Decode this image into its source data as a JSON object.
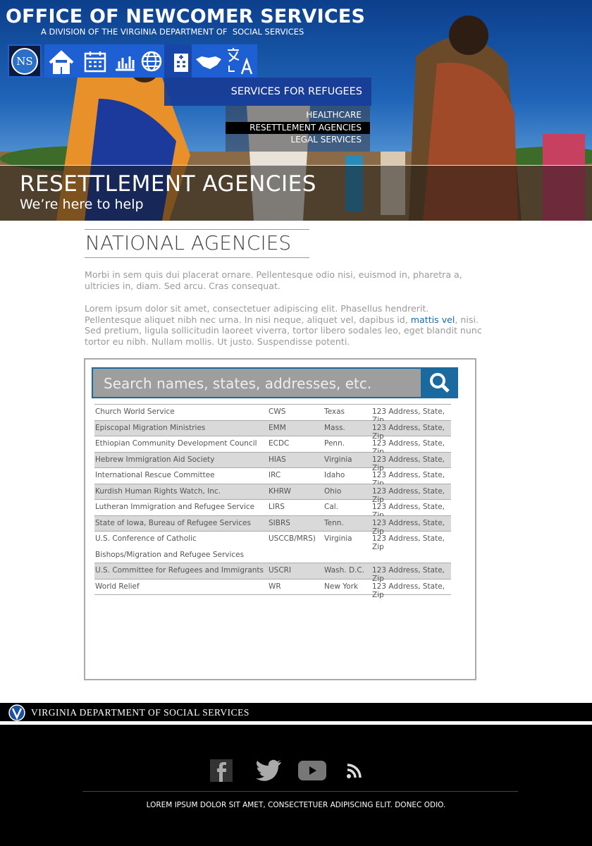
{
  "header": {
    "title": "OFFICE OF NEWCOMER SERVICES",
    "subtitle": "A DIVISION OF THE VIRGINIA DEPARTMENT OF  SOCIAL SERVICES",
    "logo": "NS"
  },
  "menu": {
    "title": "SERVICES FOR REFUGEES",
    "items": [
      "HEALTHCARE",
      "RESETTLEMENT AGENCIES",
      "LEGAL SERVICES"
    ]
  },
  "hero": {
    "title": "RESETTLEMENT AGENCIES",
    "subtitle": "We’re here to help"
  },
  "section": {
    "heading": "NATIONAL AGENCIES",
    "paragraph1": "Morbi in sem quis dui placerat ornare. Pellentesque odio nisi, euismod in, pharetra a, ultricies in, diam. Sed arcu. Cras consequat.",
    "paragraph2": {
      "before": "Lorem ipsum dolor sit amet, consectetuer adipiscing elit. Phasellus hendrerit. Pellentesque aliquet nibh nec urna. In nisi neque, aliquet vel, dapibus id, ",
      "link": "mattis vel",
      "after": ", nisi. Sed pretium, ligula sollicitudin laoreet viverra, tortor libero sodales leo, eget blandit nunc tortor eu nibh. Nullam mollis. Ut justo. Suspendisse potenti."
    }
  },
  "search": {
    "placeholder": "Search names, states, addresses, etc."
  },
  "table": {
    "rows": [
      [
        "Church World Service",
        "CWS",
        "Texas",
        "123 Address, State, Zip"
      ],
      [
        "Episcopal Migration Ministries",
        "EMM",
        "Mass.",
        "123 Address, State, Zip"
      ],
      [
        "Ethiopian Community Development Council",
        "ECDC",
        "Penn.",
        "123 Address, State, Zip"
      ],
      [
        "Hebrew Immigration Aid Society",
        "HIAS",
        "Virginia",
        "123 Address, State, Zip"
      ],
      [
        "International Rescue Committee",
        "IRC",
        "Idaho",
        "123 Address, State, Zip"
      ],
      [
        "Kurdish Human Rights Watch, Inc.",
        "KHRW",
        "Ohio",
        "123 Address, State, Zip"
      ],
      [
        "Lutheran Immigration and Refugee Service",
        "LIRS",
        "Cal.",
        "123 Address, State, Zip"
      ],
      [
        "State of Iowa, Bureau of Refugee Services",
        "SIBRS",
        "Tenn.",
        "123 Address, State, Zip"
      ],
      [
        "U.S. Conference of Catholic Bishops/Migration and Refugee Services",
        "USCCB/MRS)",
        "Virginia",
        "123 Address, State, Zip"
      ],
      [
        "U.S. Committee for Refugees and Immigrants",
        "USCRI",
        "Wash. D.C.",
        "123 Address, State, Zip"
      ],
      [
        "World Relief",
        "WR",
        "New York",
        "123 Address, State, Zip"
      ]
    ]
  },
  "footer": {
    "agency": "VIRGINIA DEPARTMENT OF SOCIAL SERVICES",
    "text": "LOREM IPSUM DOLOR SIT AMET, CONSECTETUER ADIPISCING ELIT. DONEC ODIO."
  }
}
